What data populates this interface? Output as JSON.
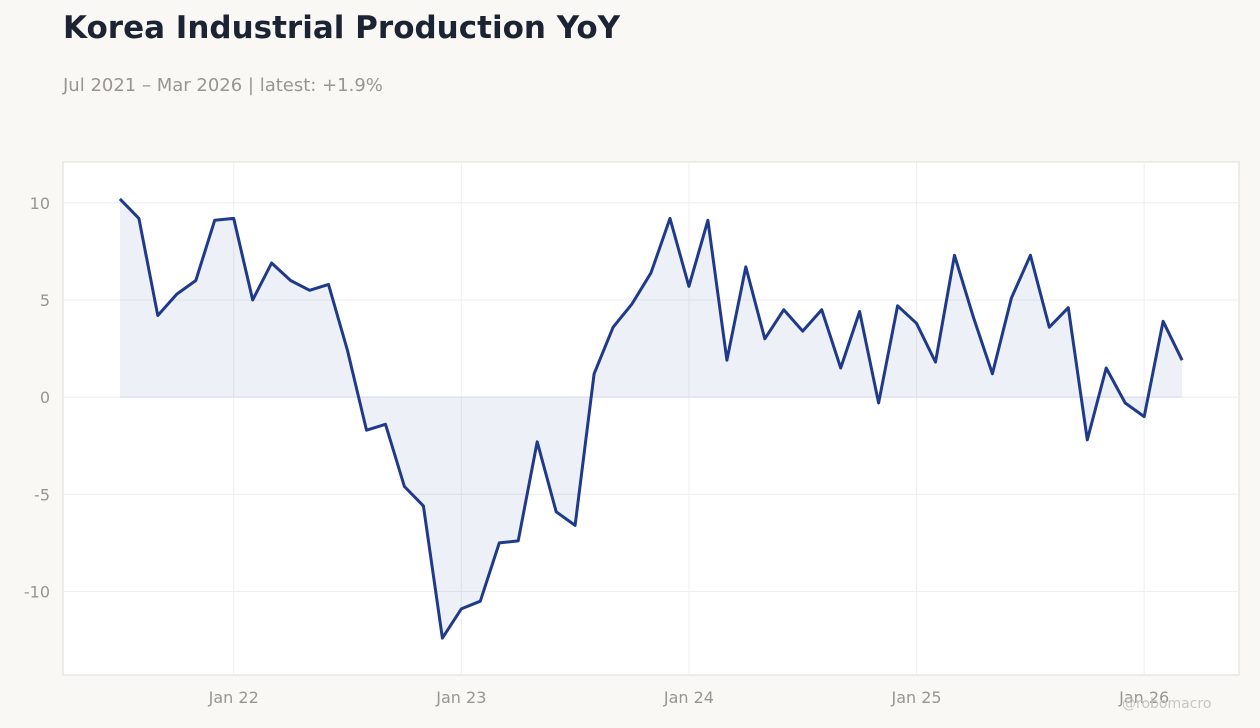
{
  "title": "Korea Industrial Production YoY",
  "subtitle": "Jul 2021 – Mar 2026 | latest: +1.9%",
  "watermark": "@robomacro",
  "colors": {
    "line": "#1f3a8a",
    "fill": "#1f3a8a",
    "background": "#f9f8f5",
    "plot_background": "#ffffff",
    "grid": "#eeeeee",
    "zero_line": "#dcdcf0"
  },
  "chart_data": {
    "type": "area",
    "title": "Korea Industrial Production YoY",
    "subtitle": "Jul 2021 – Mar 2026 | latest: +1.9%",
    "xlabel": "",
    "ylabel": "",
    "x_start": "2021-07",
    "x_end": "2026-03",
    "xlim": [
      "2021-04",
      "2026-06"
    ],
    "ylim": [
      -14.3,
      12.1
    ],
    "y_ticks": [
      10,
      5,
      0,
      -5,
      -10
    ],
    "y_tick_labels": [
      "10",
      "5",
      "0",
      "-5",
      "-10"
    ],
    "x_ticks": [
      "2022-01",
      "2023-01",
      "2024-01",
      "2025-01",
      "2026-01"
    ],
    "x_tick_labels": [
      "Jan 22",
      "Jan 23",
      "Jan 24",
      "Jan 25",
      "Jan 26"
    ],
    "grid": true,
    "series": [
      {
        "values": [
          10.2,
          9.2,
          4.2,
          5.3,
          6.0,
          9.1,
          9.2,
          5.0,
          6.9,
          6.0,
          5.5,
          5.8,
          2.4,
          -1.7,
          -1.4,
          -4.6,
          -5.6,
          -12.4,
          -10.9,
          -10.5,
          -7.5,
          -7.4,
          -2.3,
          -5.9,
          -6.6,
          1.2,
          3.6,
          4.8,
          6.4,
          9.2,
          5.7,
          9.1,
          1.9,
          6.7,
          3.0,
          4.5,
          3.4,
          4.5,
          1.5,
          4.4,
          -0.3,
          4.7,
          3.8,
          1.8,
          7.3,
          4.1,
          1.2,
          5.1,
          7.3,
          3.6,
          4.6,
          -2.2,
          1.5,
          -0.3,
          -1.0,
          3.9,
          1.9
        ]
      }
    ]
  }
}
